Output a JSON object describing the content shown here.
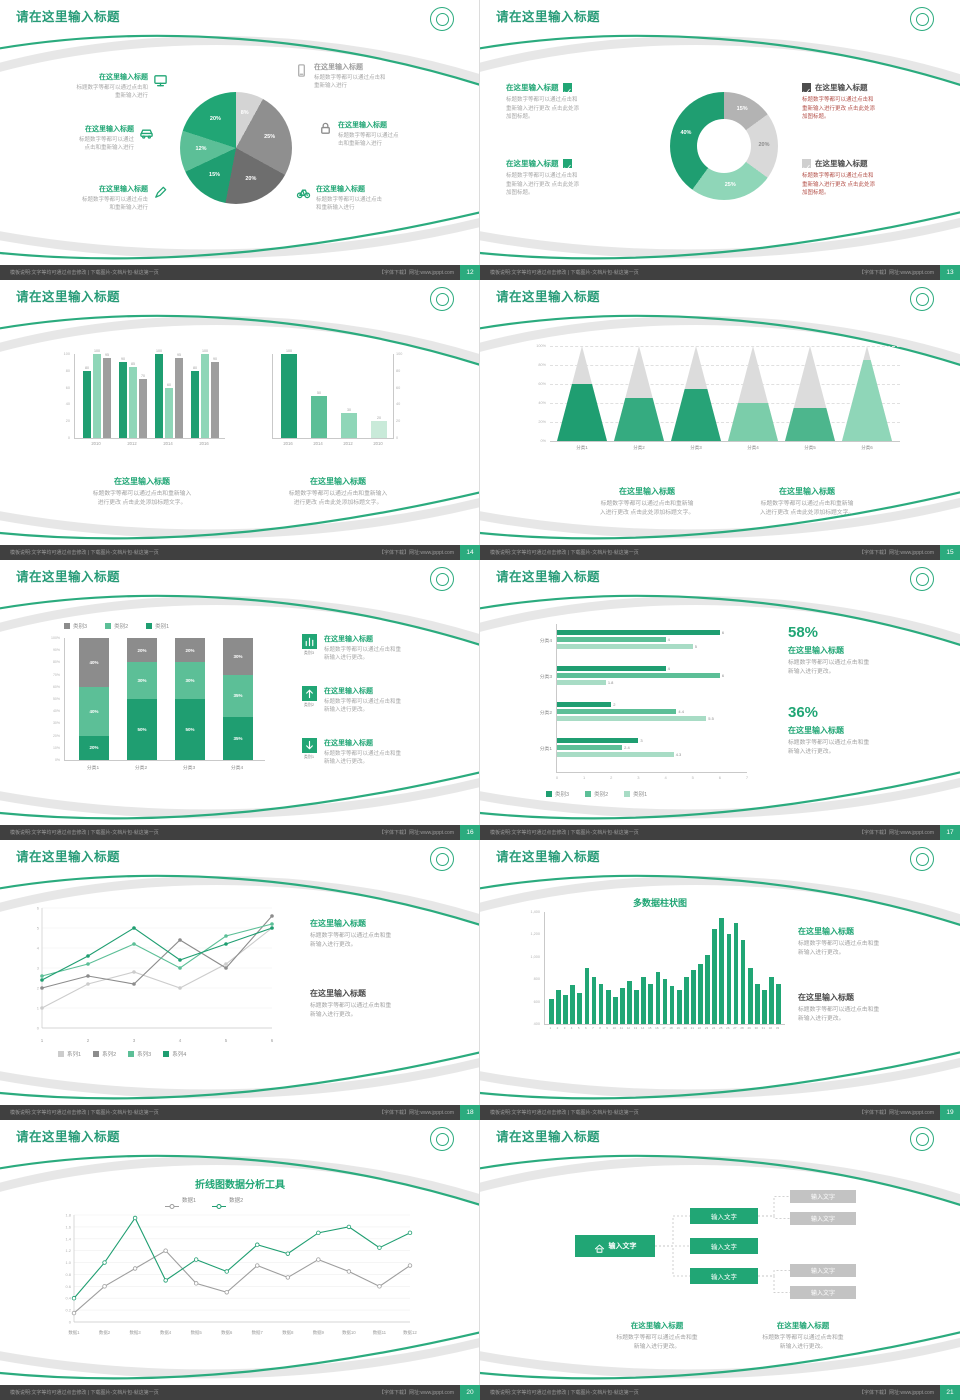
{
  "theme": {
    "green": "#21a675",
    "green_dark": "#1f9e71",
    "green_mid": "#5cbf97",
    "green_light": "#8fd6b8",
    "green_pale": "#c9ead9",
    "gray_dark": "#6e6e6e",
    "gray": "#9e9e9e",
    "gray_light": "#cfcfcf",
    "title_color": "#279b77",
    "text_gray": "#a3a3a3",
    "red": "#b5534c",
    "footer_bg": "#404040",
    "dark_text": "#4a4a4a"
  },
  "common": {
    "slide_title": "请在这里输入标题",
    "footer_left": "模板说明:文字等均可通过点击修改 | 下载图片-文档片包-就这第一页",
    "footer_right": "【字体下载】网址:www.jpppt.com"
  },
  "slides": [
    {
      "page_no": "12",
      "pie": {
        "slices": [
          {
            "label": "8%",
            "value": 8,
            "color": "#d4d4d4"
          },
          {
            "label": "25%",
            "value": 25,
            "color": "#8f8f8f"
          },
          {
            "label": "20%",
            "value": 20,
            "color": "#6e6e6e"
          },
          {
            "label": "15%",
            "value": 15,
            "color": "#1f9e71"
          },
          {
            "label": "12%",
            "value": 12,
            "color": "#5cbf97"
          },
          {
            "label": "20%",
            "value": 20,
            "color": "#21a675"
          }
        ]
      },
      "callouts_left": [
        {
          "icon": "monitor-icon",
          "icon_color": "#21a675",
          "title": "在这里输入标题",
          "title_color": "#21a675",
          "desc": "标题数字等都可以通过点击和\n重新输入进行"
        },
        {
          "icon": "car-icon",
          "icon_color": "#21a675",
          "title": "在这里输入标题",
          "title_color": "#21a675",
          "desc": "标题数字等都可以通过\n点击和重新输入进行"
        },
        {
          "icon": "pen-icon",
          "icon_color": "#21a675",
          "title": "在这里输入标题",
          "title_color": "#21a675",
          "desc": "标题数字等都可以通过点击\n和重新输入进行"
        }
      ],
      "callouts_right": [
        {
          "icon": "phone-icon",
          "icon_color": "#b0b0b0",
          "title": "在这里输入标题",
          "title_color": "#9e9e9e",
          "desc": "标题数字等都可以通过点击和\n重新输入进行"
        },
        {
          "icon": "lock-icon",
          "icon_color": "#8c8c8c",
          "title": "在这里输入标题",
          "title_color": "#21a675",
          "desc": "标题数字等都可以通过点\n击和重新输入进行"
        },
        {
          "icon": "bike-icon",
          "icon_color": "#21a675",
          "title": "在这里输入标题",
          "title_color": "#21a675",
          "desc": "标题数字等都可以通过点击\n和重新输入进行"
        }
      ]
    },
    {
      "page_no": "13",
      "donut": {
        "slices": [
          {
            "label": "15%",
            "value": 15,
            "color": "#b3b3b3",
            "text": "#ffffff"
          },
          {
            "label": "20%",
            "value": 20,
            "color": "#d9d9d9",
            "text": "#8c8c8c"
          },
          {
            "label": "25%",
            "value": 25,
            "color": "#8fd6b8",
            "text": "#ffffff"
          },
          {
            "label": "40%",
            "value": 40,
            "color": "#1f9e71",
            "text": "#ffffff"
          }
        ]
      },
      "left_items": [
        {
          "title": "在这里输入标题",
          "desc": "标题数字等都可以通过点击和\n重新输入进行更改 点击此处添\n加图标题。"
        },
        {
          "title": "在这里输入标题",
          "desc": "标题数字等都可以通过点击和\n重新输入进行更改 点击此处添\n加图标题。"
        }
      ],
      "right_items": [
        {
          "check": "#4d4d4d",
          "title": "在这里输入标题",
          "desc": "标题数字等都可以通过点击和\n重新输入进行更改 点击此处添\n加图标题。"
        },
        {
          "check": "#cfcfcf",
          "title": "在这里输入标题",
          "desc": "标题数字等都可以通过点击和\n重新输入进行更改 点击此处添\n加图标题。"
        }
      ]
    },
    {
      "page_no": "14",
      "chartA": {
        "categories": [
          "2010",
          "2012",
          "2014",
          "2016"
        ],
        "yticks": [
          "100",
          "80",
          "60",
          "40",
          "20",
          "0"
        ],
        "ymax": 100,
        "series": [
          {
            "name": "s1",
            "color": "#1f9e71",
            "values": [
              80,
              90,
              100,
              80
            ]
          },
          {
            "name": "s2",
            "color": "#8fd6b8",
            "values": [
              100,
              85,
              60,
              100
            ]
          },
          {
            "name": "s3",
            "color": "#9e9e9e",
            "values": [
              95,
              70,
              95,
              90
            ]
          }
        ]
      },
      "chartB": {
        "categories": [
          "2016",
          "2014",
          "2012",
          "2010"
        ],
        "values": [
          100,
          50,
          30,
          20
        ],
        "colors": [
          "#1f9e71",
          "#5cbf97",
          "#8fd6b8",
          "#c9ead9"
        ],
        "yticks": [
          "100",
          "80",
          "60",
          "40",
          "20",
          "0"
        ],
        "ymax": 100
      },
      "blocks": [
        {
          "title": "在这里输入标题",
          "desc": "标题数字等都可以通过点击和重新输入\n进行更改 点击此处添加标题文字。"
        },
        {
          "title": "在这里输入标题",
          "desc": "标题数字等都可以通过点击和重新输入\n进行更改 点击此处添加标题文字。"
        }
      ]
    },
    {
      "page_no": "15",
      "pyramids": {
        "yticks": [
          "100%",
          "80%",
          "60%",
          "40%",
          "20%",
          "0%"
        ],
        "items": [
          {
            "label": "分类1",
            "fill": 60,
            "color": "#1f9e71"
          },
          {
            "label": "分类2",
            "fill": 45,
            "color": "#35ab80"
          },
          {
            "label": "分类3",
            "fill": 55,
            "color": "#27a377"
          },
          {
            "label": "分类4",
            "fill": 40,
            "color": "#7bcdaa"
          },
          {
            "label": "分类5",
            "fill": 35,
            "color": "#4db68d"
          },
          {
            "label": "分类6",
            "fill": 85,
            "color": "#8fd6b8"
          }
        ]
      },
      "blocks": [
        {
          "title": "在这里输入标题",
          "desc": "标题数字等都可以通过点击和重新输\n入进行更改 点击此处添加标题文字。"
        },
        {
          "title": "在这里输入标题",
          "desc": "标题数字等都可以通过点击和重新输\n入进行更改 点击此处添加标题文字。"
        }
      ]
    },
    {
      "page_no": "16",
      "legend": [
        {
          "label": "类别3",
          "color": "#8c8c8c"
        },
        {
          "label": "类别2",
          "color": "#5cbf97"
        },
        {
          "label": "类别1",
          "color": "#1f9e71"
        }
      ],
      "stack": {
        "categories": [
          "分类1",
          "分类2",
          "分类3",
          "分类4"
        ],
        "colors": [
          "#1f9e71",
          "#5cbf97",
          "#8c8c8c"
        ],
        "segments": [
          [
            20,
            40,
            40
          ],
          [
            50,
            30,
            20
          ],
          [
            50,
            30,
            20
          ],
          [
            35,
            35,
            30
          ]
        ],
        "yticks": [
          "100%",
          "90%",
          "80%",
          "70%",
          "60%",
          "50%",
          "40%",
          "30%",
          "20%",
          "10%",
          "0%"
        ]
      },
      "right_items": [
        {
          "icon": "bar-chart-icon",
          "icon_label": "类别3",
          "title": "在这里输入标题",
          "desc": "标题数字等都可以通过点击和重\n新输入进行更改。"
        },
        {
          "icon": "arrow-up-icon",
          "icon_label": "类别2",
          "title": "在这里输入标题",
          "desc": "标题数字等都可以通过点击和重\n新输入进行更改。"
        },
        {
          "icon": "arrow-down-icon",
          "icon_label": "类别1",
          "title": "在这里输入标题",
          "desc": "标题数字等都可以通过点击和重\n新输入进行更改。"
        }
      ]
    },
    {
      "page_no": "17",
      "hbars": {
        "categories": [
          "分类4",
          "分类3",
          "分类2",
          "分类1"
        ],
        "series_colors": [
          "#1f9e71",
          "#5cbf97",
          "#a8dcc5"
        ],
        "values": [
          [
            6,
            4,
            5
          ],
          [
            4,
            6,
            1.8
          ],
          [
            2,
            4.4,
            5.5
          ],
          [
            3,
            2.4,
            4.3
          ]
        ],
        "xticks": [
          "0",
          "1",
          "2",
          "3",
          "4",
          "5",
          "6",
          "7"
        ],
        "xmax": 7
      },
      "legend": [
        {
          "label": "类别3",
          "color": "#1f9e71"
        },
        {
          "label": "类别2",
          "color": "#5cbf97"
        },
        {
          "label": "类别1",
          "color": "#a8dcc5"
        }
      ],
      "stats": [
        {
          "value": "58%",
          "title": "在这里输入标题",
          "desc": "标题数字等都可以通过点击和重\n新输入进行更改。"
        },
        {
          "value": "36%",
          "title": "在这里输入标题",
          "desc": "标题数字等都可以通过点击和重\n新输入进行更改。"
        }
      ]
    },
    {
      "page_no": "18",
      "lines": {
        "x": [
          "1",
          "2",
          "3",
          "4",
          "5",
          "6"
        ],
        "ymax": 6,
        "yticks": [
          "6",
          "5",
          "4",
          "3",
          "2",
          "1",
          "0"
        ],
        "series": [
          {
            "name": "系列1",
            "color": "#cccccc",
            "values": [
              1,
              2.2,
              2.8,
              2,
              3.2,
              5
            ]
          },
          {
            "name": "系列2",
            "color": "#8c8c8c",
            "values": [
              2,
              2.6,
              2.2,
              4.4,
              3,
              5.6
            ]
          },
          {
            "name": "系列3",
            "color": "#5cbf97",
            "values": [
              2.6,
              3.2,
              4.2,
              3,
              4.6,
              5.2
            ]
          },
          {
            "name": "系列4",
            "color": "#1f9e71",
            "values": [
              2.4,
              3.6,
              5,
              3.4,
              4.2,
              5
            ]
          }
        ]
      },
      "blocks": [
        {
          "title": "在这里输入标题",
          "title_color": "#21a675",
          "desc": "标题数字等都可以通过点击和重\n新输入进行更改。"
        },
        {
          "title": "在这里输入标题",
          "title_color": "#4a4a4a",
          "desc": "标题数字等都可以通过点击和重\n新输入进行更改。"
        }
      ]
    },
    {
      "page_no": "19",
      "chart_title": "多数据柱状图",
      "bars": {
        "yticks": [
          "1,400",
          "1,200",
          "1,000",
          "800",
          "600",
          "400"
        ],
        "ymin": 400,
        "ymax": 1400,
        "values": [
          620,
          700,
          660,
          750,
          680,
          900,
          820,
          760,
          700,
          640,
          720,
          780,
          700,
          820,
          760,
          860,
          800,
          740,
          700,
          820,
          880,
          940,
          1020,
          1250,
          1350,
          1200,
          1300,
          1150,
          900,
          760,
          700,
          820,
          760
        ],
        "xlabels": [
          "1",
          "2",
          "3",
          "4",
          "5",
          "6",
          "7",
          "8",
          "9",
          "10",
          "11",
          "12",
          "13",
          "14",
          "15",
          "16",
          "17",
          "18",
          "19",
          "20",
          "21",
          "22",
          "23",
          "24",
          "25",
          "26",
          "27",
          "28",
          "29",
          "30",
          "31",
          "32",
          "33"
        ]
      },
      "blocks": [
        {
          "title": "在这里输入标题",
          "title_color": "#21a675",
          "desc": "标题数字等都可以通过点击和重\n新输入进行更改。"
        },
        {
          "title": "在这里输入标题",
          "title_color": "#4a4a4a",
          "desc": "标题数字等都可以通过点击和重\n新输入进行更改。"
        }
      ]
    },
    {
      "page_no": "20",
      "chart_title": "折线图数据分析工具",
      "legend": [
        {
          "label": "数据1",
          "color": "#9e9e9e"
        },
        {
          "label": "数据2",
          "color": "#1f9e71"
        }
      ],
      "lines": {
        "x": [
          "数据1",
          "数据2",
          "数据3",
          "数据4",
          "数据5",
          "数据6",
          "数据7",
          "数据8",
          "数据9",
          "数据10",
          "数据11",
          "数据12"
        ],
        "ymax": 1.8,
        "yticks": [
          "1.8",
          "1.6",
          "1.4",
          "1.2",
          "1.0",
          "0.8",
          "0.6",
          "0.4",
          "0.2",
          "0"
        ],
        "series": [
          {
            "name": "数据1",
            "color": "#9e9e9e",
            "values": [
              0.15,
              0.6,
              0.9,
              1.2,
              0.65,
              0.5,
              0.95,
              0.75,
              1.05,
              0.85,
              0.6,
              0.95
            ]
          },
          {
            "name": "数据2",
            "color": "#1f9e71",
            "values": [
              0.4,
              1.0,
              1.75,
              0.7,
              1.05,
              0.85,
              1.3,
              1.15,
              1.5,
              1.6,
              1.25,
              1.5
            ]
          }
        ]
      }
    },
    {
      "page_no": "21",
      "org": {
        "root": {
          "label": "输入文字",
          "icon": "home-icon"
        },
        "children": [
          {
            "label": "输入文字"
          },
          {
            "label": "输入文字"
          },
          {
            "label": "输入文字"
          }
        ],
        "leaves": [
          {
            "label": "输入文字",
            "parent": 0
          },
          {
            "label": "输入文字",
            "parent": 0
          },
          {
            "label": "输入文字",
            "parent": 2
          },
          {
            "label": "输入文字",
            "parent": 2
          }
        ]
      },
      "blocks": [
        {
          "title": "在这里输入标题",
          "desc": "标题数字等都可以通过点击和重\n新输入进行更改。"
        },
        {
          "title": "在这里输入标题",
          "desc": "标题数字等都可以通过点击和重\n新输入进行更改。"
        }
      ]
    }
  ]
}
